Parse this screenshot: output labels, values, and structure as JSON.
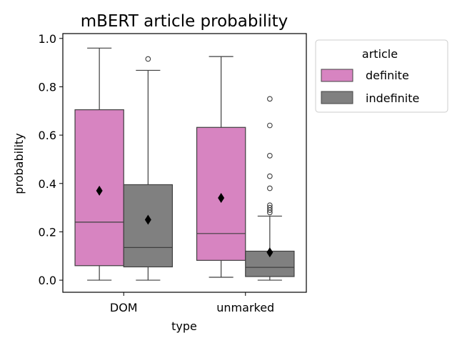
{
  "chart_data": {
    "type": "box",
    "title": "mBERT article probability",
    "xlabel": "type",
    "ylabel": "probability",
    "categories": [
      "DOM",
      "unmarked"
    ],
    "ylim": [
      -0.05,
      1.02
    ],
    "yticks": [
      0.0,
      0.2,
      0.4,
      0.6,
      0.8,
      1.0
    ],
    "ytick_labels": [
      "0.0",
      "0.2",
      "0.4",
      "0.6",
      "0.8",
      "1.0"
    ],
    "legend": {
      "title": "article",
      "placement": "outside-right"
    },
    "series": [
      {
        "name": "definite",
        "color": "#d784c1",
        "boxes": [
          {
            "category": "DOM",
            "min": 0.0,
            "q1": 0.06,
            "median": 0.24,
            "q3": 0.705,
            "max": 0.96,
            "mean": 0.37,
            "outliers": []
          },
          {
            "category": "unmarked",
            "min": 0.012,
            "q1": 0.082,
            "median": 0.193,
            "q3": 0.632,
            "max": 0.925,
            "mean": 0.34,
            "outliers": []
          }
        ]
      },
      {
        "name": "indefinite",
        "color": "#808080",
        "boxes": [
          {
            "category": "DOM",
            "min": 0.0,
            "q1": 0.055,
            "median": 0.135,
            "q3": 0.395,
            "max": 0.868,
            "mean": 0.25,
            "outliers": [
              0.915
            ]
          },
          {
            "category": "unmarked",
            "min": 0.0,
            "q1": 0.015,
            "median": 0.053,
            "q3": 0.12,
            "max": 0.265,
            "mean": 0.115,
            "outliers": [
              0.75,
              0.64,
              0.515,
              0.43,
              0.38,
              0.31,
              0.3,
              0.29,
              0.28
            ]
          }
        ]
      }
    ]
  }
}
